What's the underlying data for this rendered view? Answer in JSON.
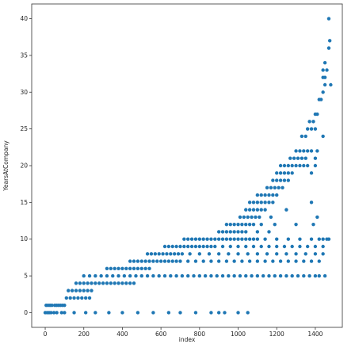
{
  "chart_data": {
    "type": "scatter",
    "xlabel": "index",
    "ylabel": "YearsAtCompany",
    "xlim": [
      -70,
      1540
    ],
    "ylim": [
      -2,
      42
    ],
    "xticks": [
      0,
      200,
      400,
      600,
      800,
      1000,
      1200,
      1400
    ],
    "yticks": [
      0,
      5,
      10,
      15,
      20,
      25,
      30,
      35,
      40
    ],
    "grid": false,
    "marker_color": "#1f77b4",
    "points": [
      [
        0,
        0
      ],
      [
        10,
        0
      ],
      [
        20,
        0
      ],
      [
        30,
        0
      ],
      [
        45,
        0
      ],
      [
        5,
        1
      ],
      [
        15,
        1
      ],
      [
        25,
        1
      ],
      [
        35,
        1
      ],
      [
        50,
        1
      ],
      [
        60,
        1
      ],
      [
        70,
        1
      ],
      [
        80,
        1
      ],
      [
        90,
        1
      ],
      [
        100,
        1
      ],
      [
        110,
        2
      ],
      [
        130,
        2
      ],
      [
        150,
        2
      ],
      [
        170,
        2
      ],
      [
        190,
        2
      ],
      [
        210,
        2
      ],
      [
        230,
        2
      ],
      [
        120,
        3
      ],
      [
        140,
        3
      ],
      [
        160,
        3
      ],
      [
        180,
        3
      ],
      [
        200,
        3
      ],
      [
        220,
        3
      ],
      [
        240,
        3
      ],
      [
        60,
        0
      ],
      [
        85,
        0
      ],
      [
        100,
        0
      ],
      [
        150,
        0
      ],
      [
        210,
        0
      ],
      [
        260,
        0
      ],
      [
        330,
        0
      ],
      [
        400,
        0
      ],
      [
        480,
        0
      ],
      [
        560,
        0
      ],
      [
        640,
        0
      ],
      [
        700,
        0
      ],
      [
        780,
        0
      ],
      [
        860,
        0
      ],
      [
        900,
        0
      ],
      [
        930,
        0
      ],
      [
        1000,
        0
      ],
      [
        1050,
        0
      ],
      [
        160,
        4
      ],
      [
        180,
        4
      ],
      [
        200,
        4
      ],
      [
        220,
        4
      ],
      [
        240,
        4
      ],
      [
        260,
        4
      ],
      [
        280,
        4
      ],
      [
        300,
        4
      ],
      [
        320,
        4
      ],
      [
        340,
        4
      ],
      [
        360,
        4
      ],
      [
        380,
        4
      ],
      [
        400,
        4
      ],
      [
        420,
        4
      ],
      [
        440,
        4
      ],
      [
        460,
        4
      ],
      [
        200,
        5
      ],
      [
        230,
        5
      ],
      [
        260,
        5
      ],
      [
        290,
        5
      ],
      [
        320,
        5
      ],
      [
        350,
        5
      ],
      [
        380,
        5
      ],
      [
        410,
        5
      ],
      [
        440,
        5
      ],
      [
        470,
        5
      ],
      [
        500,
        5
      ],
      [
        530,
        5
      ],
      [
        560,
        5
      ],
      [
        590,
        5
      ],
      [
        620,
        5
      ],
      [
        650,
        5
      ],
      [
        680,
        5
      ],
      [
        710,
        5
      ],
      [
        740,
        5
      ],
      [
        770,
        5
      ],
      [
        800,
        5
      ],
      [
        830,
        5
      ],
      [
        860,
        5
      ],
      [
        890,
        5
      ],
      [
        920,
        5
      ],
      [
        950,
        5
      ],
      [
        980,
        5
      ],
      [
        1010,
        5
      ],
      [
        1040,
        5
      ],
      [
        1070,
        5
      ],
      [
        1100,
        5
      ],
      [
        1130,
        5
      ],
      [
        1160,
        5
      ],
      [
        1190,
        5
      ],
      [
        1220,
        5
      ],
      [
        1250,
        5
      ],
      [
        1280,
        5
      ],
      [
        1310,
        5
      ],
      [
        1340,
        5
      ],
      [
        1370,
        5
      ],
      [
        1400,
        5
      ],
      [
        1420,
        5
      ],
      [
        1450,
        5
      ],
      [
        320,
        6
      ],
      [
        340,
        6
      ],
      [
        360,
        6
      ],
      [
        380,
        6
      ],
      [
        400,
        6
      ],
      [
        420,
        6
      ],
      [
        440,
        6
      ],
      [
        460,
        6
      ],
      [
        480,
        6
      ],
      [
        500,
        6
      ],
      [
        520,
        6
      ],
      [
        540,
        6
      ],
      [
        440,
        7
      ],
      [
        460,
        7
      ],
      [
        480,
        7
      ],
      [
        500,
        7
      ],
      [
        520,
        7
      ],
      [
        540,
        7
      ],
      [
        560,
        7
      ],
      [
        580,
        7
      ],
      [
        600,
        7
      ],
      [
        620,
        7
      ],
      [
        640,
        7
      ],
      [
        660,
        7
      ],
      [
        680,
        7
      ],
      [
        700,
        7
      ],
      [
        740,
        7
      ],
      [
        780,
        7
      ],
      [
        820,
        7
      ],
      [
        860,
        7
      ],
      [
        900,
        7
      ],
      [
        940,
        7
      ],
      [
        980,
        7
      ],
      [
        1020,
        7
      ],
      [
        1060,
        7
      ],
      [
        1100,
        7
      ],
      [
        1140,
        7
      ],
      [
        1180,
        7
      ],
      [
        1220,
        7
      ],
      [
        1260,
        7
      ],
      [
        1300,
        7
      ],
      [
        1340,
        7
      ],
      [
        1380,
        7
      ],
      [
        1420,
        7
      ],
      [
        530,
        8
      ],
      [
        550,
        8
      ],
      [
        570,
        8
      ],
      [
        590,
        8
      ],
      [
        610,
        8
      ],
      [
        630,
        8
      ],
      [
        650,
        8
      ],
      [
        670,
        8
      ],
      [
        690,
        8
      ],
      [
        710,
        8
      ],
      [
        750,
        8
      ],
      [
        800,
        8
      ],
      [
        850,
        8
      ],
      [
        900,
        8
      ],
      [
        950,
        8
      ],
      [
        1000,
        8
      ],
      [
        1050,
        8
      ],
      [
        1100,
        8
      ],
      [
        1150,
        8
      ],
      [
        1200,
        8
      ],
      [
        1250,
        8
      ],
      [
        1300,
        8
      ],
      [
        1350,
        8
      ],
      [
        1400,
        8
      ],
      [
        1440,
        8
      ],
      [
        620,
        9
      ],
      [
        640,
        9
      ],
      [
        660,
        9
      ],
      [
        680,
        9
      ],
      [
        700,
        9
      ],
      [
        720,
        9
      ],
      [
        740,
        9
      ],
      [
        760,
        9
      ],
      [
        780,
        9
      ],
      [
        800,
        9
      ],
      [
        820,
        9
      ],
      [
        840,
        9
      ],
      [
        860,
        9
      ],
      [
        880,
        9
      ],
      [
        920,
        9
      ],
      [
        960,
        9
      ],
      [
        1000,
        9
      ],
      [
        1040,
        9
      ],
      [
        1080,
        9
      ],
      [
        1120,
        9
      ],
      [
        1160,
        9
      ],
      [
        1200,
        9
      ],
      [
        1240,
        9
      ],
      [
        1280,
        9
      ],
      [
        1320,
        9
      ],
      [
        1360,
        9
      ],
      [
        1400,
        9
      ],
      [
        1440,
        9
      ],
      [
        720,
        10
      ],
      [
        740,
        10
      ],
      [
        760,
        10
      ],
      [
        780,
        10
      ],
      [
        800,
        10
      ],
      [
        820,
        10
      ],
      [
        840,
        10
      ],
      [
        860,
        10
      ],
      [
        880,
        10
      ],
      [
        900,
        10
      ],
      [
        920,
        10
      ],
      [
        940,
        10
      ],
      [
        960,
        10
      ],
      [
        980,
        10
      ],
      [
        1000,
        10
      ],
      [
        1020,
        10
      ],
      [
        1040,
        10
      ],
      [
        1060,
        10
      ],
      [
        1080,
        10
      ],
      [
        1100,
        10
      ],
      [
        1140,
        10
      ],
      [
        1200,
        10
      ],
      [
        1260,
        10
      ],
      [
        1320,
        10
      ],
      [
        1380,
        10
      ],
      [
        1420,
        10
      ],
      [
        1440,
        10
      ],
      [
        1460,
        10
      ],
      [
        1470,
        10
      ],
      [
        900,
        11
      ],
      [
        920,
        11
      ],
      [
        940,
        11
      ],
      [
        960,
        11
      ],
      [
        980,
        11
      ],
      [
        1000,
        11
      ],
      [
        1020,
        11
      ],
      [
        1040,
        11
      ],
      [
        1100,
        11
      ],
      [
        1160,
        11
      ],
      [
        940,
        12
      ],
      [
        960,
        12
      ],
      [
        980,
        12
      ],
      [
        1000,
        12
      ],
      [
        1020,
        12
      ],
      [
        1040,
        12
      ],
      [
        1060,
        12
      ],
      [
        1080,
        12
      ],
      [
        1120,
        12
      ],
      [
        1190,
        12
      ],
      [
        1300,
        12
      ],
      [
        1390,
        12
      ],
      [
        1010,
        13
      ],
      [
        1030,
        13
      ],
      [
        1050,
        13
      ],
      [
        1070,
        13
      ],
      [
        1090,
        13
      ],
      [
        1110,
        13
      ],
      [
        1170,
        13
      ],
      [
        1410,
        13
      ],
      [
        1040,
        14
      ],
      [
        1060,
        14
      ],
      [
        1080,
        14
      ],
      [
        1100,
        14
      ],
      [
        1120,
        14
      ],
      [
        1140,
        14
      ],
      [
        1250,
        14
      ],
      [
        1060,
        15
      ],
      [
        1080,
        15
      ],
      [
        1100,
        15
      ],
      [
        1120,
        15
      ],
      [
        1140,
        15
      ],
      [
        1160,
        15
      ],
      [
        1180,
        15
      ],
      [
        1380,
        15
      ],
      [
        1100,
        16
      ],
      [
        1120,
        16
      ],
      [
        1140,
        16
      ],
      [
        1160,
        16
      ],
      [
        1180,
        16
      ],
      [
        1200,
        16
      ],
      [
        1150,
        17
      ],
      [
        1170,
        17
      ],
      [
        1190,
        17
      ],
      [
        1210,
        17
      ],
      [
        1230,
        17
      ],
      [
        1180,
        18
      ],
      [
        1200,
        18
      ],
      [
        1220,
        18
      ],
      [
        1240,
        18
      ],
      [
        1260,
        18
      ],
      [
        1200,
        19
      ],
      [
        1220,
        19
      ],
      [
        1240,
        19
      ],
      [
        1260,
        19
      ],
      [
        1280,
        19
      ],
      [
        1380,
        19
      ],
      [
        1220,
        20
      ],
      [
        1240,
        20
      ],
      [
        1260,
        20
      ],
      [
        1280,
        20
      ],
      [
        1300,
        20
      ],
      [
        1320,
        20
      ],
      [
        1340,
        20
      ],
      [
        1360,
        20
      ],
      [
        1400,
        20
      ],
      [
        1270,
        21
      ],
      [
        1290,
        21
      ],
      [
        1310,
        21
      ],
      [
        1330,
        21
      ],
      [
        1350,
        21
      ],
      [
        1400,
        21
      ],
      [
        1300,
        22
      ],
      [
        1320,
        22
      ],
      [
        1340,
        22
      ],
      [
        1360,
        22
      ],
      [
        1380,
        22
      ],
      [
        1410,
        22
      ],
      [
        1330,
        24
      ],
      [
        1350,
        24
      ],
      [
        1440,
        24
      ],
      [
        1360,
        25
      ],
      [
        1380,
        25
      ],
      [
        1400,
        25
      ],
      [
        1370,
        26
      ],
      [
        1390,
        26
      ],
      [
        1400,
        27
      ],
      [
        1410,
        27
      ],
      [
        1420,
        29
      ],
      [
        1430,
        29
      ],
      [
        1440,
        30
      ],
      [
        1450,
        31
      ],
      [
        1480,
        31
      ],
      [
        1440,
        32
      ],
      [
        1450,
        32
      ],
      [
        1440,
        33
      ],
      [
        1460,
        33
      ],
      [
        1450,
        34
      ],
      [
        1470,
        36
      ],
      [
        1475,
        37
      ],
      [
        1470,
        40
      ]
    ]
  }
}
